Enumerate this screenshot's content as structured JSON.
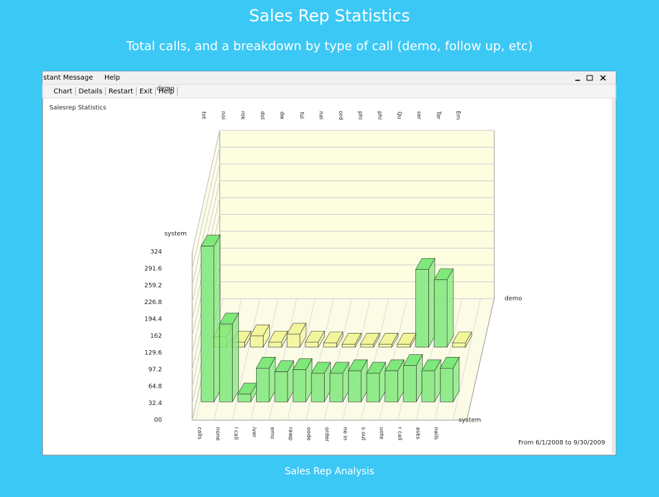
{
  "slide": {
    "title": "Sales Rep Statistics",
    "subtitle": "Total calls, and a breakdown by type of call (demo, follow up, etc)",
    "footer": "Sales Rep Analysis"
  },
  "window": {
    "menu": [
      "stant Message",
      "Help"
    ],
    "toolbar": [
      "Chart",
      "Details",
      "Restart",
      "Exit",
      "Help"
    ]
  },
  "chart_data": {
    "type": "bar3d",
    "title": "Salesrep Statistics",
    "ylim": [
      0,
      324
    ],
    "yticks": [
      {
        "value": 0,
        "label": "00"
      },
      32.4,
      64.8,
      97.2,
      129.6,
      162,
      194.4,
      226.8,
      259.2,
      291.6,
      324
    ],
    "back_categories": [
      "tot",
      "noi",
      "rok",
      "dol",
      "dw",
      "fol",
      "nai",
      "ord",
      "phi",
      "phi",
      "Qu",
      "ser",
      "Tar",
      "Em"
    ],
    "categories": [
      "calls",
      "none",
      "l call",
      "iver",
      "emo",
      "rawp",
      "oode",
      "order",
      "ne in",
      "s out",
      "uote",
      "r call",
      "asks",
      "nails"
    ],
    "series": [
      {
        "name": "demo",
        "color": "#f2f59a",
        "values": [
          20,
          10,
          22,
          10,
          25,
          10,
          8,
          6,
          6,
          6,
          6,
          150,
          130,
          8
        ]
      },
      {
        "name": "system",
        "color": "#7fe87a",
        "values": [
          300,
          150,
          15,
          65,
          58,
          62,
          55,
          55,
          60,
          55,
          60,
          70,
          60,
          65
        ]
      }
    ],
    "date_range": "From 6/1/2008 to 9/30/2009"
  }
}
